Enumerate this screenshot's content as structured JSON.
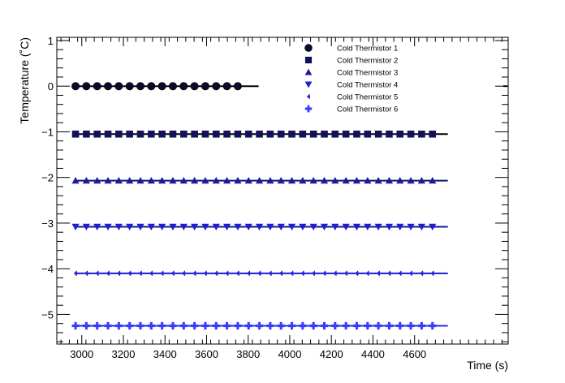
{
  "chart_data": {
    "type": "scatter",
    "title": "",
    "xlabel": "Time (s)",
    "ylabel": "Temperature (˚C)",
    "xlim": [
      2880,
      5050
    ],
    "ylim": [
      -5.65,
      1.07
    ],
    "xticks": [
      3000,
      3200,
      3400,
      3600,
      3800,
      4000,
      4200,
      4400,
      4600
    ],
    "yticks": [
      1,
      0,
      -1,
      -2,
      -3,
      -4,
      -5
    ],
    "ytick_labels": [
      "1",
      "0",
      "−1",
      "−2",
      "−3",
      "−4",
      "−5"
    ],
    "grid": false,
    "legend_position": "top-right",
    "series": [
      {
        "name": "Cold Thermistor 1",
        "marker": "circle",
        "color": "#0a0a2e",
        "line_color": "#000000",
        "x_start": 2970,
        "x_step": 52,
        "count": 16,
        "value": 0.0,
        "line_xlim": [
          2970,
          3850
        ]
      },
      {
        "name": "Cold Thermistor 2",
        "marker": "square",
        "color": "#12125c",
        "line_color": "#000000",
        "x_start": 2970,
        "x_step": 52,
        "count": 34,
        "value": -1.05,
        "line_xlim": [
          2970,
          4760
        ]
      },
      {
        "name": "Cold Thermistor 3",
        "marker": "triangle-up",
        "color": "#1c1c9a",
        "line_color": "#13137a",
        "x_start": 2970,
        "x_step": 52,
        "count": 34,
        "value": -2.07,
        "line_xlim": [
          2970,
          4760
        ]
      },
      {
        "name": "Cold Thermistor 4",
        "marker": "triangle-down",
        "color": "#1e1ed0",
        "line_color": "#16169a",
        "x_start": 2970,
        "x_step": 52,
        "count": 34,
        "value": -3.08,
        "line_xlim": [
          2970,
          4760
        ]
      },
      {
        "name": "Cold Thermistor 5",
        "marker": "diamond-thin",
        "color": "#2424e0",
        "line_color": "#1a1ad0",
        "x_start": 2970,
        "x_step": 52,
        "count": 34,
        "value": -4.1,
        "line_xlim": [
          2970,
          4760
        ]
      },
      {
        "name": "Cold Thermistor 6",
        "marker": "cross",
        "color": "#3a3aff",
        "line_color": "#2828f5",
        "x_start": 2970,
        "x_step": 52,
        "count": 34,
        "value": -5.25,
        "line_xlim": [
          2970,
          4760
        ]
      }
    ]
  }
}
